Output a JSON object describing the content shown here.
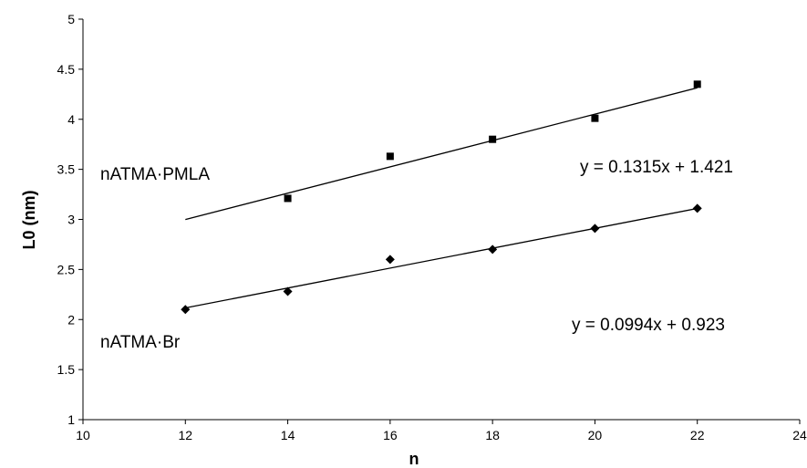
{
  "chart_data": {
    "type": "scatter",
    "title": "",
    "xlabel": "n",
    "ylabel": "L0 (nm)",
    "xlim": [
      10,
      24
    ],
    "ylim": [
      1,
      5
    ],
    "x_ticks": [
      10,
      12,
      14,
      16,
      18,
      20,
      22,
      24
    ],
    "y_ticks": [
      1,
      1.5,
      2,
      2.5,
      3,
      3.5,
      4,
      4.5,
      5
    ],
    "grid": false,
    "legend": "none",
    "series": [
      {
        "name": "nATMA·PMLA",
        "marker": "square",
        "color": "#000000",
        "x": [
          14,
          16,
          18,
          20,
          22
        ],
        "y": [
          3.21,
          3.63,
          3.8,
          4.01,
          4.35
        ],
        "trendline": {
          "slope": 0.1315,
          "intercept": 1.421,
          "x_range": [
            12,
            22
          ]
        },
        "equation": "y = 0.1315x + 1.421"
      },
      {
        "name": "nATMA·Br",
        "marker": "diamond",
        "color": "#000000",
        "x": [
          12,
          14,
          16,
          18,
          20,
          22
        ],
        "y": [
          2.1,
          2.28,
          2.6,
          2.7,
          2.91,
          3.11
        ],
        "trendline": {
          "slope": 0.0994,
          "intercept": 0.923,
          "x_range": [
            12,
            22
          ]
        },
        "equation": "y = 0.0994x + 0.923"
      }
    ]
  }
}
